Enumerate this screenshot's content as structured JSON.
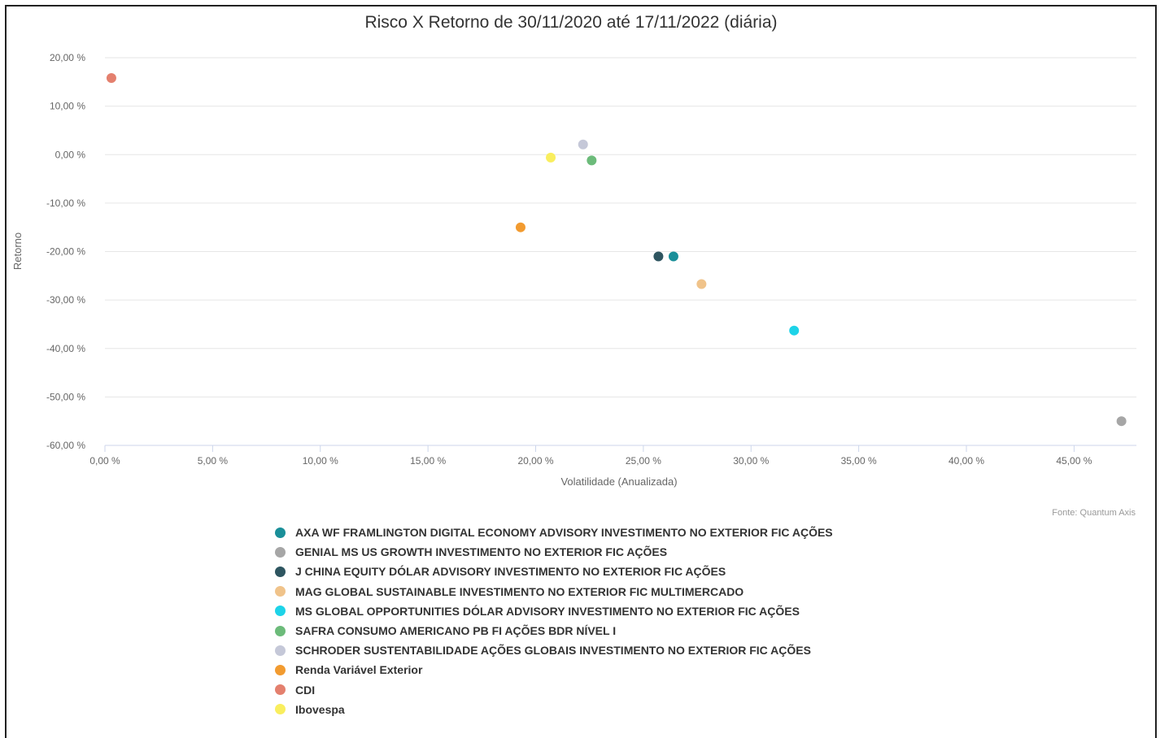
{
  "chart_data": {
    "type": "scatter",
    "title": "Risco X Retorno de 30/11/2020 até 17/11/2022 (diária)",
    "xlabel": "Volatilidade (Anualizada)",
    "ylabel": "Retorno",
    "xlim": [
      0,
      47.5
    ],
    "ylim": [
      -60,
      20
    ],
    "x_ticks": [
      0,
      5,
      10,
      15,
      20,
      25,
      30,
      35,
      40,
      45
    ],
    "x_tick_labels": [
      "0,00 %",
      "5,00 %",
      "10,00 %",
      "15,00 %",
      "20,00 %",
      "25,00 %",
      "30,00 %",
      "35,00 %",
      "40,00 %",
      "45,00 %"
    ],
    "y_ticks": [
      20,
      10,
      0,
      -10,
      -20,
      -30,
      -40,
      -50,
      -60
    ],
    "y_tick_labels": [
      "20,00 %",
      "10,00 %",
      "0,00 %",
      "-10,00 %",
      "-20,00 %",
      "-30,00 %",
      "-40,00 %",
      "-50,00 %",
      "-60,00 %"
    ],
    "grid": true,
    "legend_position": "bottom",
    "credit": "Fonte: Quantum Axis",
    "series": [
      {
        "name": "AXA WF FRAMLINGTON DIGITAL ECONOMY ADVISORY INVESTIMENTO NO EXTERIOR FIC AÇÕES",
        "color": "#1a8f99",
        "x": 26.4,
        "y": -21.0
      },
      {
        "name": "GENIAL MS US GROWTH INVESTIMENTO NO EXTERIOR FIC AÇÕES",
        "color": "#a6a6a6",
        "x": 47.2,
        "y": -55.0
      },
      {
        "name": "J CHINA EQUITY DÓLAR ADVISORY INVESTIMENTO NO EXTERIOR FIC AÇÕES",
        "color": "#2e5560",
        "x": 25.7,
        "y": -21.0
      },
      {
        "name": "MAG GLOBAL SUSTAINABLE INVESTIMENTO NO EXTERIOR FIC MULTIMERCADO",
        "color": "#f0c38a",
        "x": 27.7,
        "y": -26.7
      },
      {
        "name": "MS GLOBAL OPPORTUNITIES DÓLAR ADVISORY INVESTIMENTO NO EXTERIOR FIC AÇÕES",
        "color": "#1dd3e8",
        "x": 32.0,
        "y": -36.3
      },
      {
        "name": "SAFRA CONSUMO AMERICANO PB FI AÇÕES BDR NÍVEL I",
        "color": "#6cbb7a",
        "x": 22.6,
        "y": -1.2
      },
      {
        "name": "SCHRODER SUSTENTABILIDADE AÇÕES GLOBAIS INVESTIMENTO NO EXTERIOR FIC AÇÕES",
        "color": "#c5c8d8",
        "x": 22.2,
        "y": 2.1
      },
      {
        "name": "Renda Variável Exterior",
        "color": "#f29b30",
        "x": 19.3,
        "y": -15.0
      },
      {
        "name": "CDI",
        "color": "#e4806e",
        "x": 0.3,
        "y": 15.8
      },
      {
        "name": "Ibovespa",
        "color": "#f9ee5e",
        "x": 20.7,
        "y": -0.6
      }
    ]
  }
}
